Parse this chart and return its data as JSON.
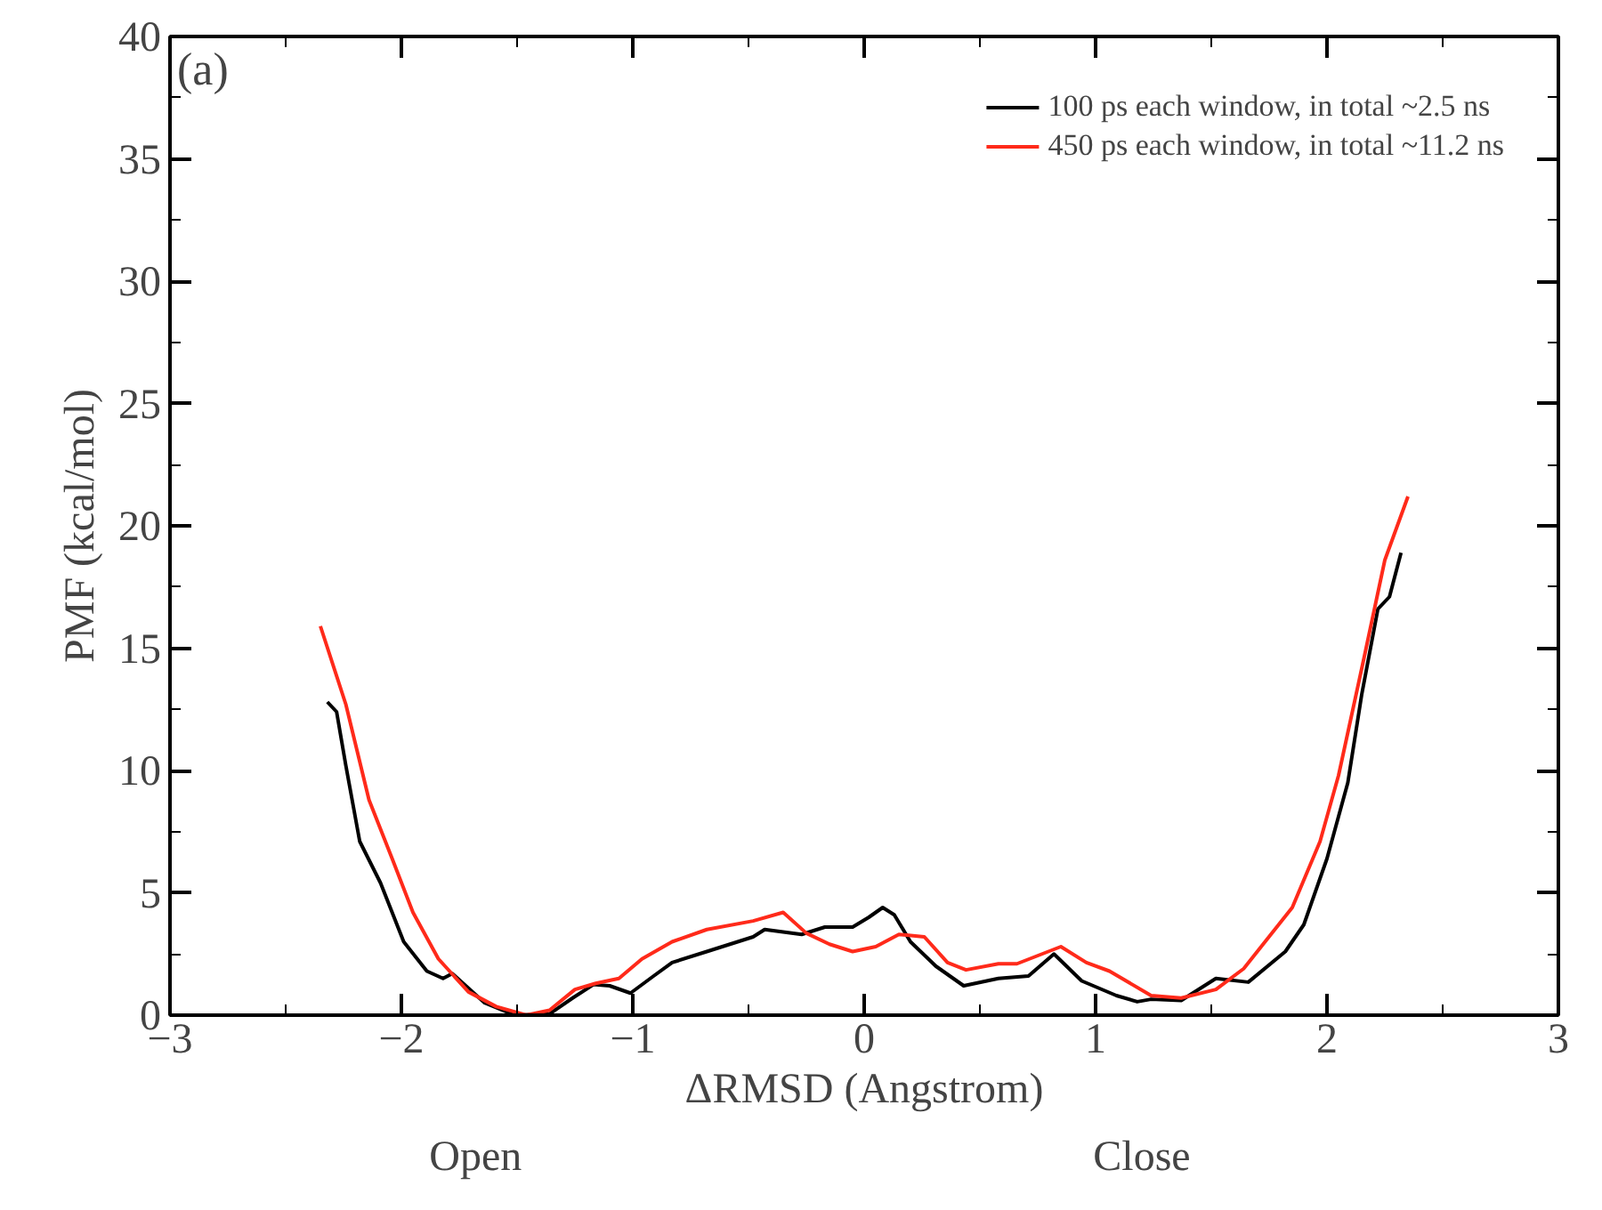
{
  "chart_data": {
    "type": "line",
    "xlabel": "ΔRMSD (Angstrom)",
    "ylabel": "PMF (kcal/mol)",
    "xlim": [
      -3,
      3
    ],
    "xticks": [
      -3,
      -2,
      -1,
      0,
      1,
      2,
      3
    ],
    "ylim": [
      0,
      40
    ],
    "yticks": [
      0,
      5,
      10,
      15,
      20,
      25,
      30,
      35,
      40
    ],
    "grid": false,
    "legend": "top right",
    "line_style": "solid",
    "marker": "none",
    "annotations": [
      "(a)",
      "Open",
      "Close"
    ],
    "series": [
      {
        "name": "100 ps each window, in total ~2.5 ns",
        "color": "#000000",
        "x": [
          -2.32,
          -2.28,
          -2.24,
          -2.18,
          -2.09,
          -1.99,
          -1.89,
          -1.82,
          -1.78,
          -1.71,
          -1.64,
          -1.51,
          -1.36,
          -1.26,
          -1.17,
          -1.1,
          -1.01,
          -0.91,
          -0.83,
          -0.68,
          -0.48,
          -0.43,
          -0.27,
          -0.17,
          -0.05,
          0.02,
          0.08,
          0.13,
          0.2,
          0.31,
          0.43,
          0.58,
          0.71,
          0.82,
          0.94,
          1.09,
          1.18,
          1.24,
          1.37,
          1.52,
          1.66,
          1.82,
          1.9,
          2.0,
          2.09,
          2.15,
          2.22,
          2.27,
          2.32
        ],
        "values": [
          12.8,
          12.4,
          10.2,
          7.1,
          5.4,
          3.0,
          1.8,
          1.5,
          1.7,
          1.1,
          0.5,
          0,
          0.05,
          0.7,
          1.25,
          1.2,
          0.9,
          1.6,
          2.15,
          2.6,
          3.2,
          3.5,
          3.3,
          3.6,
          3.6,
          4.0,
          4.4,
          4.1,
          3.0,
          2.0,
          1.2,
          1.5,
          1.6,
          2.5,
          1.4,
          0.8,
          0.55,
          0.65,
          0.6,
          1.5,
          1.35,
          2.6,
          3.7,
          6.4,
          9.5,
          13.1,
          16.6,
          17.1,
          18.9
        ]
      },
      {
        "name": "450 ps each window, in total ~11.2 ns",
        "color": "#ff2a1a",
        "x": [
          -2.35,
          -2.24,
          -2.14,
          -2.04,
          -1.95,
          -1.84,
          -1.71,
          -1.59,
          -1.46,
          -1.36,
          -1.25,
          -1.16,
          -1.06,
          -0.96,
          -0.83,
          -0.68,
          -0.48,
          -0.35,
          -0.25,
          -0.15,
          -0.05,
          0.05,
          0.15,
          0.26,
          0.36,
          0.44,
          0.58,
          0.66,
          0.85,
          0.96,
          1.06,
          1.24,
          1.37,
          1.52,
          1.64,
          1.85,
          1.97,
          2.05,
          2.16,
          2.25,
          2.35
        ],
        "values": [
          15.9,
          12.7,
          8.8,
          6.4,
          4.2,
          2.3,
          0.95,
          0.35,
          0,
          0.2,
          1.05,
          1.3,
          1.5,
          2.3,
          3.0,
          3.5,
          3.85,
          4.2,
          3.35,
          2.9,
          2.6,
          2.8,
          3.3,
          3.2,
          2.15,
          1.85,
          2.1,
          2.1,
          2.8,
          2.15,
          1.8,
          0.8,
          0.7,
          1.05,
          1.9,
          4.4,
          7.1,
          9.8,
          14.6,
          18.6,
          21.2
        ]
      }
    ]
  }
}
